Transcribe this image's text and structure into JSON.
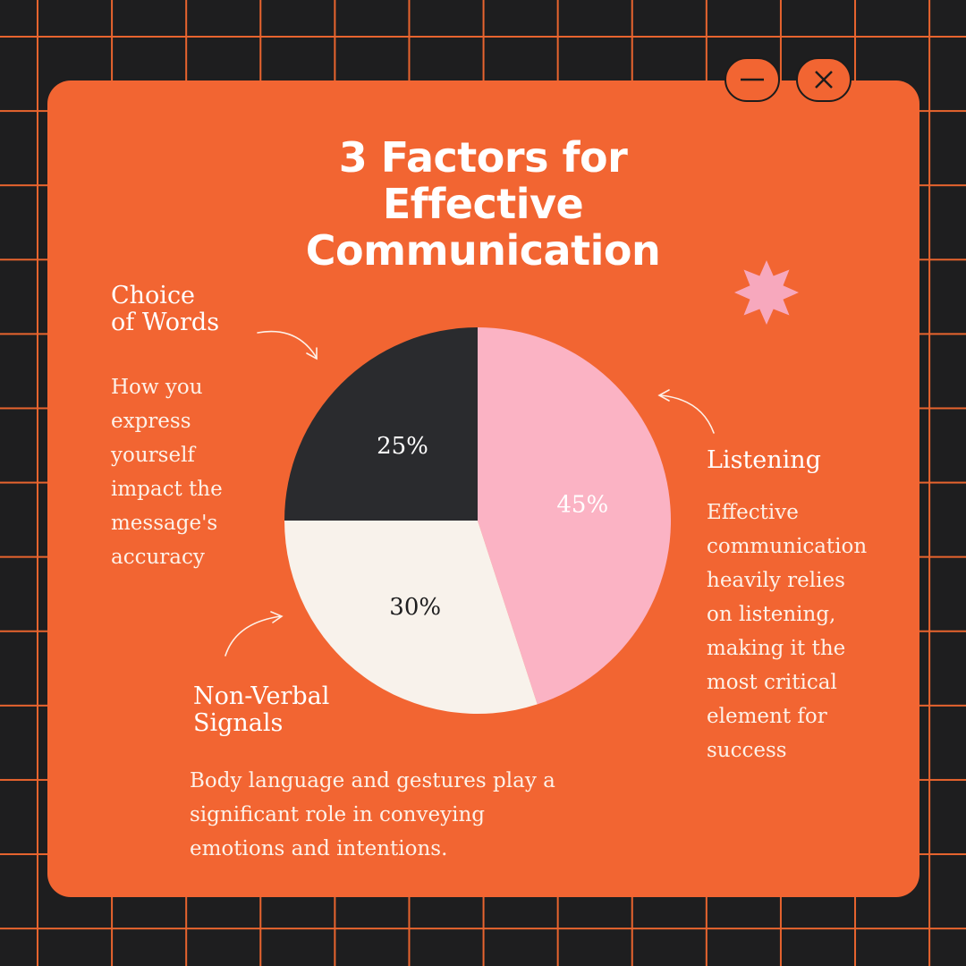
{
  "title_lines": [
    "3 Factors for",
    "Effective",
    "Communication"
  ],
  "window_controls": {
    "minimize_icon": "minus-icon",
    "close_icon": "close-icon"
  },
  "decorations": {
    "star_icon": "eight-point-star-icon",
    "star_color": "#f7a8bd"
  },
  "colors": {
    "background": "#1e1e1f",
    "grid_lines": "#e8642e",
    "card": "#f26532",
    "listening": "#fbb3c4",
    "choice_of_words": "#2a2b2e",
    "non_verbal": "#f8f2eb"
  },
  "annotations": {
    "choice_of_words": {
      "title_lines": [
        "Choice",
        "of Words"
      ],
      "description_lines": [
        "How you",
        "express",
        "yourself",
        "impact the",
        "message's",
        "accuracy"
      ]
    },
    "listening": {
      "title_lines": [
        "Listening"
      ],
      "description_lines": [
        "Effective",
        "communication",
        "heavily relies",
        "on listening,",
        "making it the",
        "most critical",
        "element for",
        "success"
      ]
    },
    "non_verbal": {
      "title_lines": [
        "Non-Verbal",
        "Signals"
      ],
      "description_lines": [
        "Body language and gestures play a",
        "significant role in conveying",
        "emotions and intentions."
      ]
    }
  },
  "chart_data": {
    "type": "pie",
    "title": "3 Factors for Effective Communication",
    "unit": "%",
    "start_angle_deg": 0,
    "direction": "clockwise",
    "slices": [
      {
        "label": "Listening",
        "value": 45,
        "display": "45%",
        "color": "#fbb3c4",
        "text_color": "#ffffff"
      },
      {
        "label": "Non-Verbal Signals",
        "value": 30,
        "display": "30%",
        "color": "#f8f2eb",
        "text_color": "#1e1e1f"
      },
      {
        "label": "Choice of Words",
        "value": 25,
        "display": "25%",
        "color": "#2a2b2e",
        "text_color": "#ffffff"
      }
    ]
  }
}
